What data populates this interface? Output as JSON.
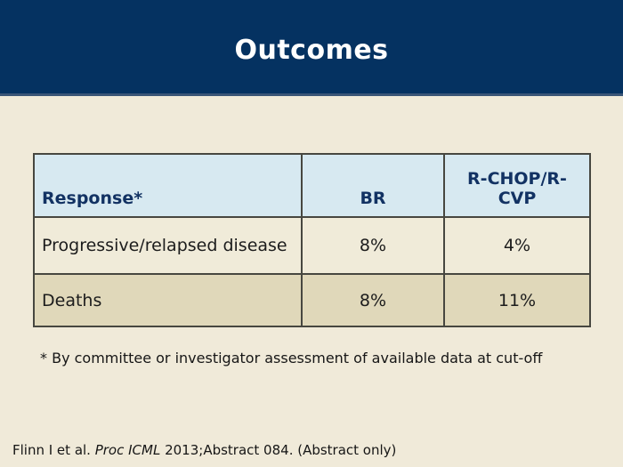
{
  "slide": {
    "title": "Outcomes",
    "footnote": "* By committee or investigator assessment of available data at cut-off",
    "citation": {
      "prefix": "Flinn I et al. ",
      "italic_part": "Proc ICML",
      "suffix": " 2013;Abstract 084. (Abstract only)"
    }
  },
  "table": {
    "columns": [
      "Response*",
      "BR",
      "R-CHOP/R-CVP"
    ],
    "rows": [
      {
        "cells": [
          "Progressive/relapsed disease",
          "8%",
          "4%"
        ]
      },
      {
        "cells": [
          "Deaths",
          "8%",
          "11%"
        ]
      }
    ]
  },
  "colors": {
    "title_band": "#053261",
    "title_band_accent": "#3a5577",
    "page_background": "#f0ead9",
    "table_header_bg": "#d7e9f1",
    "table_header_text": "#123263",
    "row_light_bg": "#f0ebd9",
    "row_dark_bg": "#e0d8ba",
    "table_border": "#474740",
    "title_text": "#ffffff",
    "body_text": "#1c1c1c"
  }
}
